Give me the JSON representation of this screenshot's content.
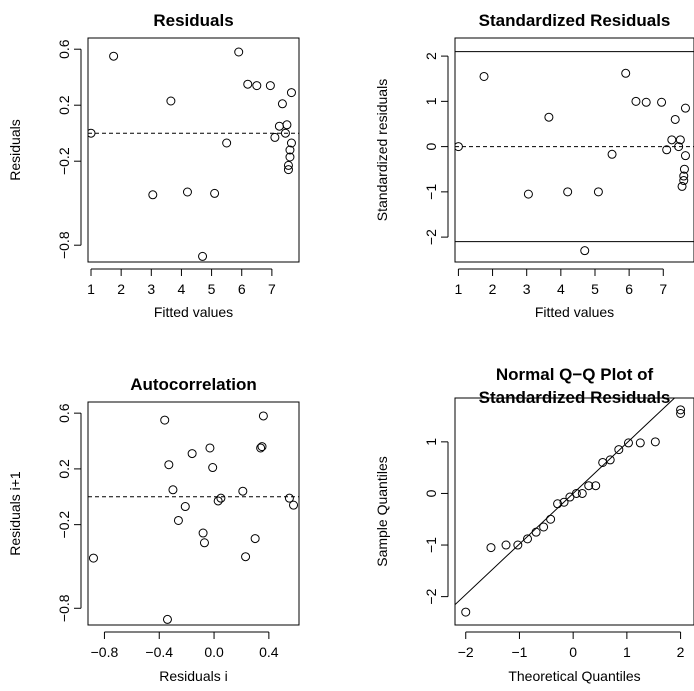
{
  "chart_data": [
    {
      "type": "scatter",
      "title": "Residuals",
      "xlabel": "Fitted values",
      "ylabel": "Residuals",
      "xlim": [
        0.9,
        7.9
      ],
      "ylim": [
        -0.92,
        0.68
      ],
      "xticks": [
        1,
        2,
        3,
        4,
        5,
        6,
        7
      ],
      "yticks": [
        0.6,
        0.2,
        -0.2,
        -0.8
      ],
      "ytick_labels": [
        "0.6",
        "0.2",
        "−0.2",
        "−0.8"
      ],
      "reference_lines": [
        {
          "type": "h",
          "y": 0,
          "style": "dashed"
        }
      ],
      "points": [
        [
          1.0,
          0.0
        ],
        [
          1.75,
          0.55
        ],
        [
          3.05,
          -0.44
        ],
        [
          3.65,
          0.23
        ],
        [
          4.2,
          -0.42
        ],
        [
          4.7,
          -0.88
        ],
        [
          5.1,
          -0.43
        ],
        [
          5.5,
          -0.07
        ],
        [
          5.9,
          0.58
        ],
        [
          6.2,
          0.35
        ],
        [
          6.5,
          0.34
        ],
        [
          6.95,
          0.34
        ],
        [
          7.1,
          -0.03
        ],
        [
          7.25,
          0.05
        ],
        [
          7.35,
          0.21
        ],
        [
          7.45,
          0.0
        ],
        [
          7.5,
          0.06
        ],
        [
          7.55,
          -0.26
        ],
        [
          7.55,
          -0.23
        ],
        [
          7.6,
          -0.17
        ],
        [
          7.6,
          -0.12
        ],
        [
          7.65,
          -0.07
        ],
        [
          7.65,
          0.29
        ]
      ]
    },
    {
      "type": "scatter",
      "title": "Standardized Residuals",
      "xlabel": "Fitted values",
      "ylabel": "Standardized residuals",
      "xlim": [
        0.9,
        7.9
      ],
      "ylim": [
        -2.55,
        2.4
      ],
      "xticks": [
        1,
        2,
        3,
        4,
        5,
        6,
        7
      ],
      "yticks": [
        2,
        1,
        0,
        -1,
        -2
      ],
      "ytick_labels": [
        "2",
        "1",
        "0",
        "−1",
        "−2"
      ],
      "reference_lines": [
        {
          "type": "h",
          "y": 0,
          "style": "dashed"
        },
        {
          "type": "h",
          "y": 2.1,
          "style": "solid"
        },
        {
          "type": "h",
          "y": -2.1,
          "style": "solid"
        }
      ],
      "points": [
        [
          1.0,
          0.0
        ],
        [
          1.75,
          1.55
        ],
        [
          3.05,
          -1.05
        ],
        [
          3.65,
          0.65
        ],
        [
          4.2,
          -1.0
        ],
        [
          4.7,
          -2.3
        ],
        [
          5.1,
          -1.0
        ],
        [
          5.5,
          -0.17
        ],
        [
          5.9,
          1.62
        ],
        [
          6.2,
          1.0
        ],
        [
          6.5,
          0.98
        ],
        [
          6.95,
          0.98
        ],
        [
          7.1,
          -0.07
        ],
        [
          7.25,
          0.15
        ],
        [
          7.35,
          0.6
        ],
        [
          7.45,
          0.0
        ],
        [
          7.5,
          0.15
        ],
        [
          7.55,
          -0.88
        ],
        [
          7.6,
          -0.75
        ],
        [
          7.6,
          -0.65
        ],
        [
          7.62,
          -0.5
        ],
        [
          7.65,
          -0.2
        ],
        [
          7.65,
          0.85
        ]
      ]
    },
    {
      "type": "scatter",
      "title": "Autocorrelation",
      "xlabel": "Residuals i",
      "ylabel": "Residuals i+1",
      "xlim": [
        -0.92,
        0.62
      ],
      "ylim": [
        -0.92,
        0.68
      ],
      "xticks": [
        -0.8,
        -0.4,
        0.0,
        0.4
      ],
      "xtick_labels": [
        "−0.8",
        "−0.4",
        "0.0",
        "0.4"
      ],
      "yticks": [
        0.6,
        0.2,
        -0.2,
        -0.8
      ],
      "ytick_labels": [
        "0.6",
        "0.2",
        "−0.2",
        "−0.8"
      ],
      "reference_lines": [
        {
          "type": "h",
          "y": 0,
          "style": "dashed"
        }
      ],
      "points": [
        [
          -0.88,
          -0.44
        ],
        [
          -0.36,
          0.55
        ],
        [
          -0.34,
          -0.88
        ],
        [
          -0.33,
          0.23
        ],
        [
          -0.3,
          0.05
        ],
        [
          -0.26,
          -0.17
        ],
        [
          -0.21,
          -0.07
        ],
        [
          -0.16,
          0.31
        ],
        [
          -0.08,
          -0.26
        ],
        [
          -0.07,
          -0.33
        ],
        [
          -0.03,
          0.35
        ],
        [
          -0.01,
          0.21
        ],
        [
          0.03,
          -0.03
        ],
        [
          0.05,
          -0.01
        ],
        [
          0.21,
          0.04
        ],
        [
          0.23,
          -0.43
        ],
        [
          0.3,
          -0.3
        ],
        [
          0.34,
          0.35
        ],
        [
          0.35,
          0.36
        ],
        [
          0.36,
          0.58
        ],
        [
          0.55,
          -0.01
        ],
        [
          0.58,
          -0.06
        ]
      ]
    },
    {
      "type": "scatter",
      "title": "Normal Q−Q Plot of Standardized Residuals",
      "title_lines": [
        "Normal Q−Q Plot of",
        "Standardized Residuals"
      ],
      "xlabel": "Theoretical Quantiles",
      "ylabel": "Sample Quantiles",
      "xlim": [
        -2.2,
        2.25
      ],
      "ylim": [
        -2.55,
        1.85
      ],
      "xticks": [
        -2,
        -1,
        0,
        1,
        2
      ],
      "xtick_labels": [
        "−2",
        "−1",
        "0",
        "1",
        "2"
      ],
      "yticks": [
        1,
        0,
        -1,
        -2
      ],
      "ytick_labels": [
        "1",
        "0",
        "−1",
        "−2"
      ],
      "reference_lines": [
        {
          "type": "abline",
          "intercept": 0,
          "slope": 0.98,
          "style": "solid"
        }
      ],
      "points": [
        [
          -2.0,
          -2.3
        ],
        [
          -1.53,
          -1.05
        ],
        [
          -1.25,
          -1.0
        ],
        [
          -1.03,
          -1.0
        ],
        [
          -0.85,
          -0.88
        ],
        [
          -0.69,
          -0.75
        ],
        [
          -0.55,
          -0.65
        ],
        [
          -0.42,
          -0.5
        ],
        [
          -0.29,
          -0.2
        ],
        [
          -0.17,
          -0.17
        ],
        [
          -0.06,
          -0.07
        ],
        [
          0.06,
          0.0
        ],
        [
          0.17,
          0.0
        ],
        [
          0.29,
          0.15
        ],
        [
          0.42,
          0.15
        ],
        [
          0.55,
          0.6
        ],
        [
          0.69,
          0.65
        ],
        [
          0.85,
          0.85
        ],
        [
          1.03,
          0.98
        ],
        [
          1.25,
          0.98
        ],
        [
          1.53,
          1.0
        ],
        [
          2.0,
          1.55
        ],
        [
          2.0,
          1.62
        ]
      ]
    }
  ]
}
